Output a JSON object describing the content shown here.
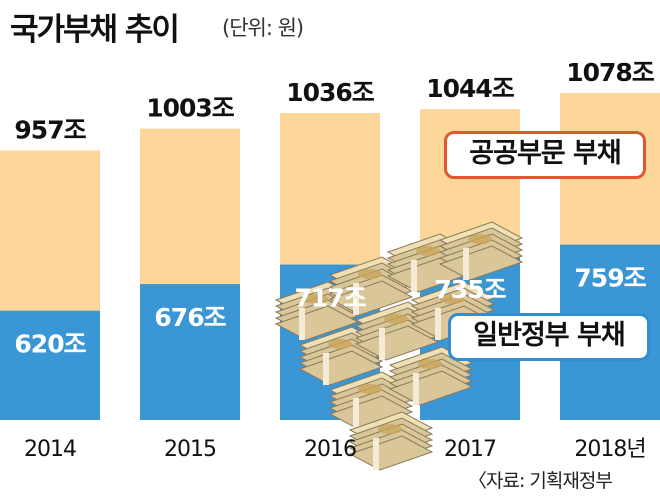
{
  "title": "국가부채 추이",
  "unit": "(단위: 원)",
  "source": "〈자료: 기획재정부",
  "colors": {
    "public_sector": "#fdd699",
    "general_government": "#3b96d6",
    "public_border": "#e2572f",
    "general_border": "#2f8fd2"
  },
  "chart_data": {
    "type": "bar",
    "stacked": false,
    "categories": [
      "2014",
      "2015",
      "2016",
      "2017",
      "2018년"
    ],
    "series": [
      {
        "name": "공공부문 부채",
        "values": [
          957,
          1003,
          1036,
          1044,
          1078
        ],
        "labels": [
          "957조",
          "1003조",
          "1036조",
          "1044조",
          "1078조"
        ]
      },
      {
        "name": "일반정부 부채",
        "values": [
          620,
          676,
          717,
          735,
          759
        ],
        "labels": [
          "620조",
          "676조",
          "717조",
          "735조",
          "759조"
        ]
      }
    ],
    "title": "국가부채 추이",
    "unit": "(단위: 원)",
    "ylim": [
      0,
      1078
    ],
    "grid": false,
    "legend": "inside-right",
    "legend_items": [
      "공공부문 부채",
      "일반정부 부채"
    ],
    "decoration": "stacks of banknotes illustration"
  }
}
